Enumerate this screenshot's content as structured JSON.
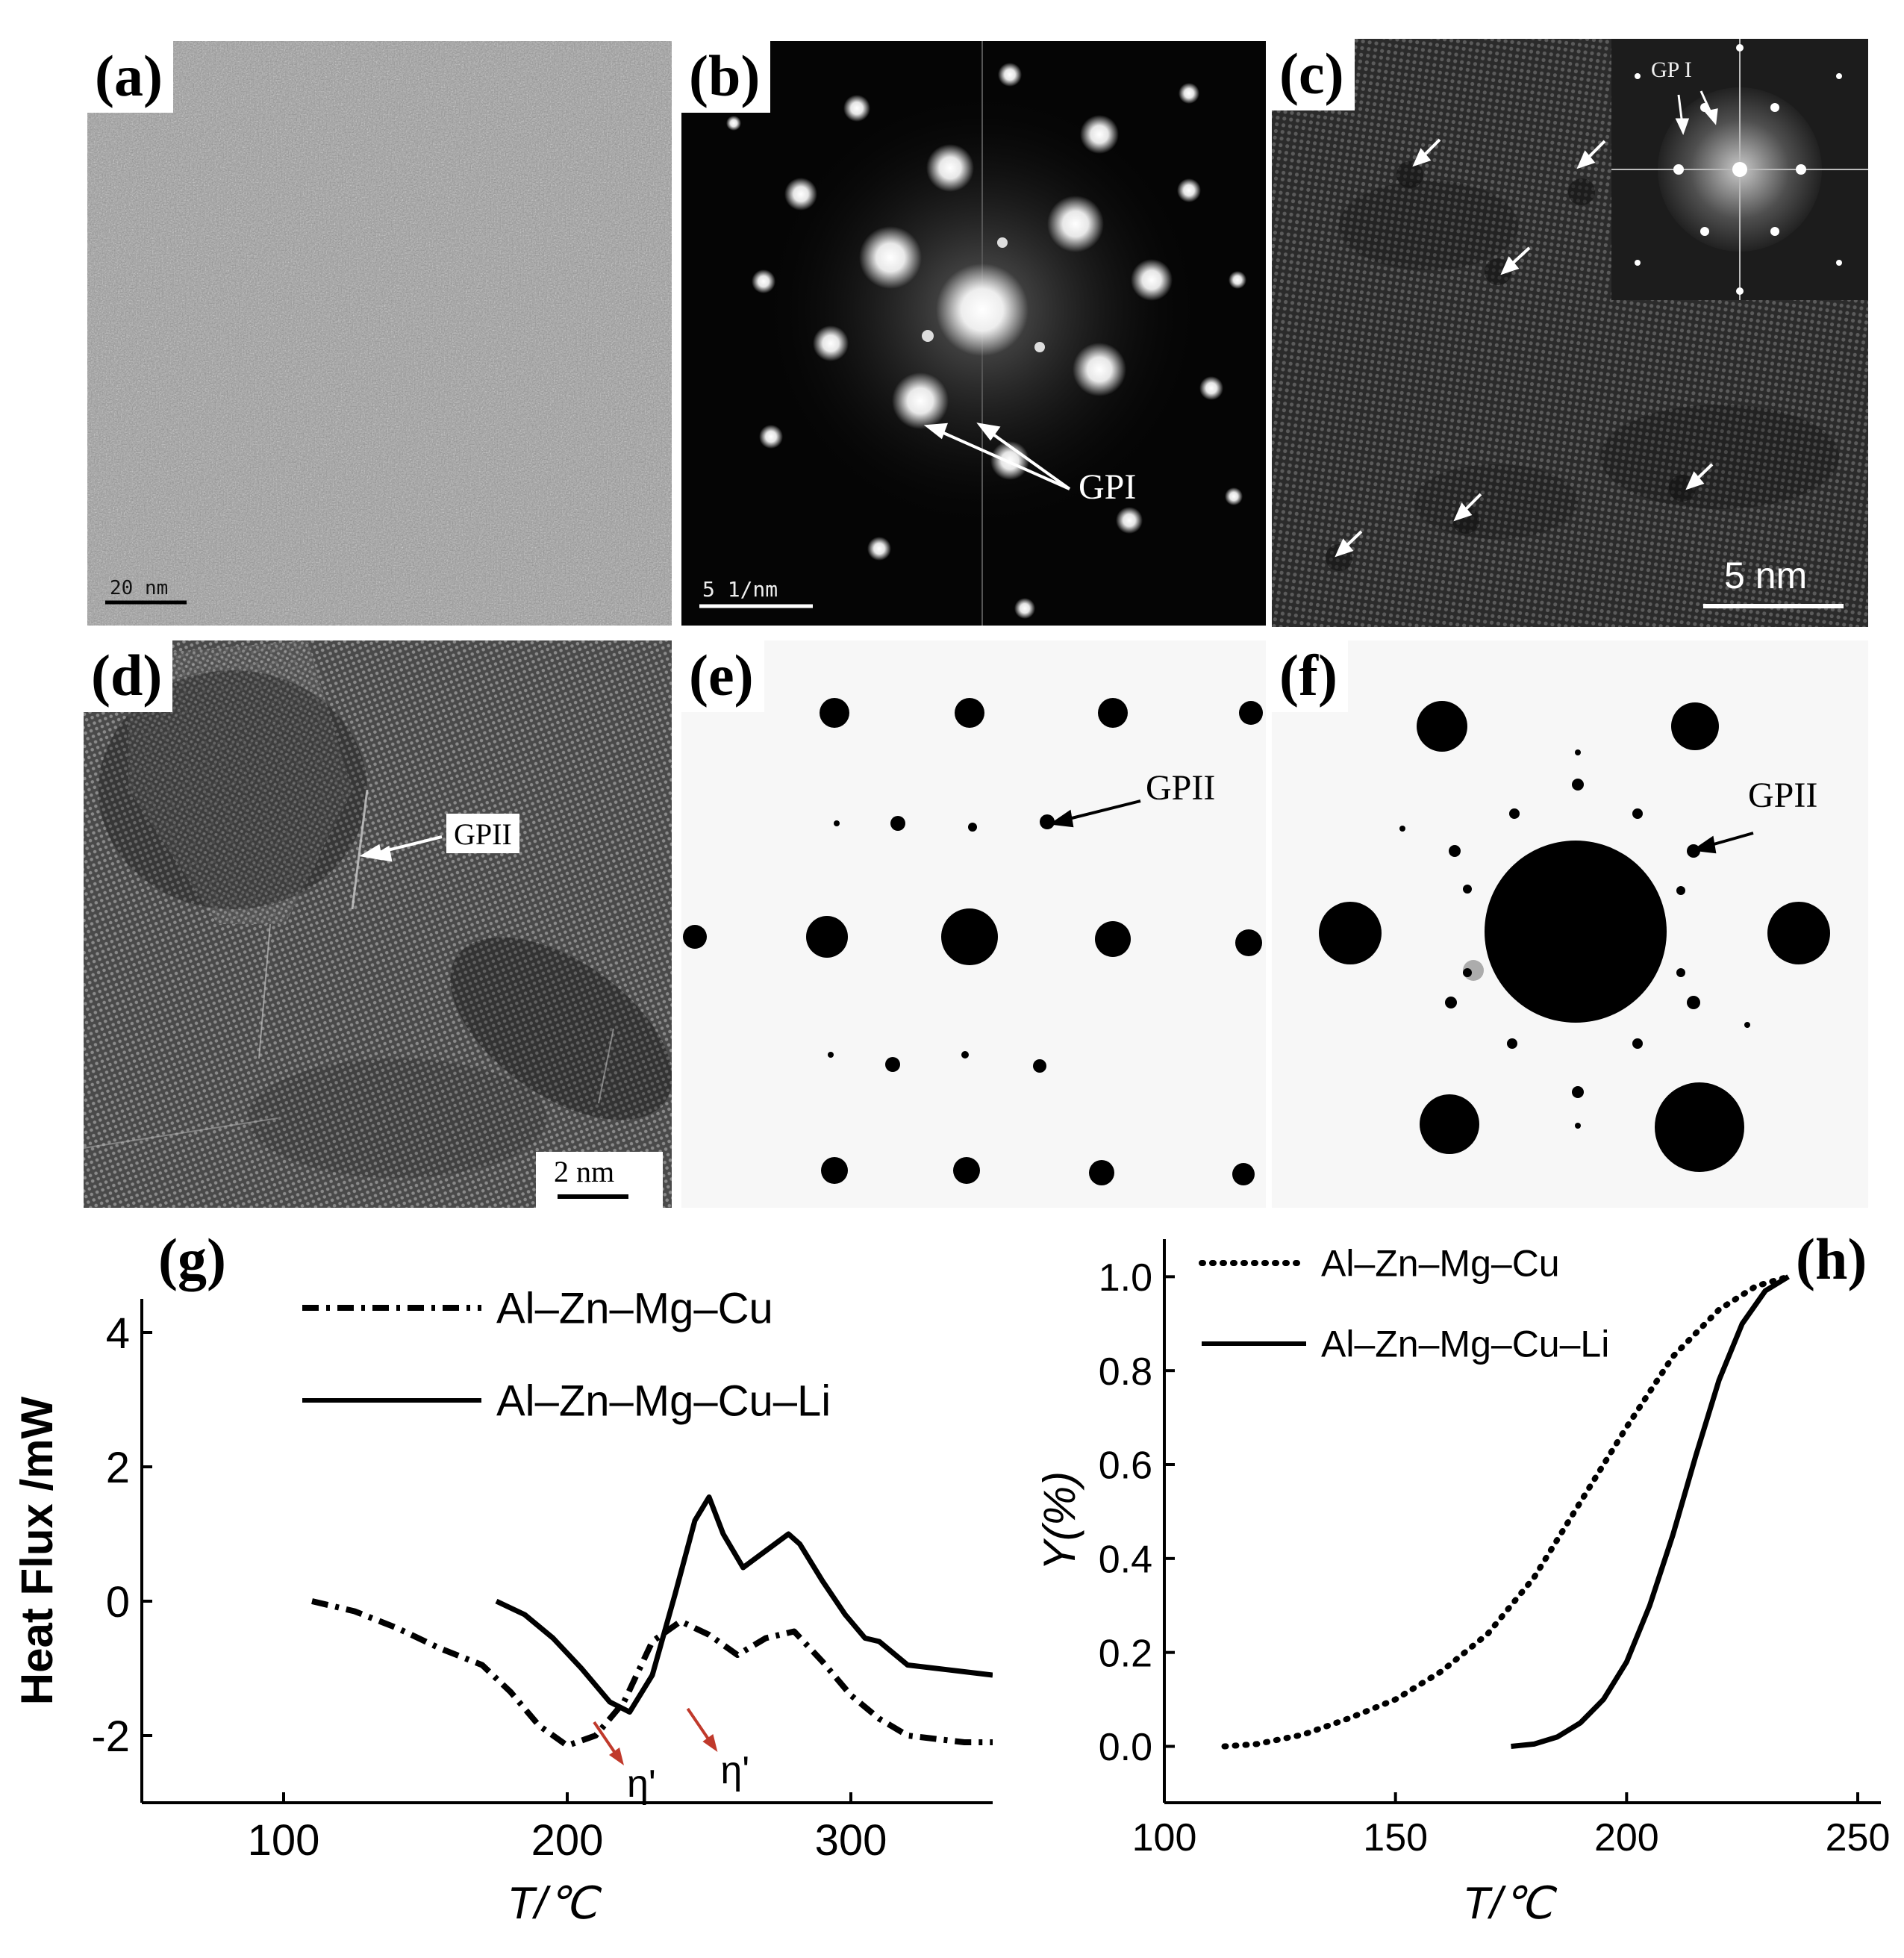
{
  "figure": {
    "panels": {
      "a": {
        "label": "(a)",
        "scale_bar": "20 nm"
      },
      "b": {
        "label": "(b)",
        "scale_bar": "5 1/nm",
        "annotation": "GPI"
      },
      "c": {
        "label": "(c)",
        "scale_bar": "5 nm",
        "inset_annotation": "GP I"
      },
      "d": {
        "label": "(d)",
        "scale_bar": "2 nm",
        "annotation": "GPII"
      },
      "e": {
        "label": "(e)",
        "annotation": "GPII"
      },
      "f": {
        "label": "(f)",
        "annotation": "GPII"
      },
      "g": {
        "label": "(g)"
      },
      "h": {
        "label": "(h)"
      }
    }
  },
  "chart_data": [
    {
      "panel": "g",
      "type": "line",
      "xlabel": "T/℃",
      "ylabel": "Heat Flux /mW",
      "xlim": [
        50,
        350
      ],
      "ylim": [
        -3,
        4.5
      ],
      "x_ticks": [
        100,
        200,
        300
      ],
      "y_ticks": [
        -2,
        0,
        2,
        4
      ],
      "legend_position": "top",
      "series": [
        {
          "name": "Al–Zn–Mg–Cu",
          "style": "dash-dot",
          "x": [
            110,
            125,
            140,
            155,
            170,
            180,
            190,
            200,
            210,
            220,
            230,
            240,
            250,
            260,
            270,
            280,
            290,
            300,
            310,
            320,
            330,
            340,
            350
          ],
          "y": [
            0,
            -0.15,
            -0.4,
            -0.7,
            -0.95,
            -1.35,
            -1.85,
            -2.15,
            -2.0,
            -1.5,
            -0.6,
            -0.3,
            -0.5,
            -0.8,
            -0.55,
            -0.45,
            -0.9,
            -1.4,
            -1.75,
            -2.0,
            -2.05,
            -2.1,
            -2.1
          ]
        },
        {
          "name": "Al–Zn–Mg–Cu–Li",
          "style": "solid",
          "x": [
            175,
            185,
            195,
            205,
            215,
            222,
            230,
            238,
            245,
            250,
            255,
            262,
            270,
            278,
            282,
            290,
            298,
            305,
            310,
            320,
            330,
            340,
            350
          ],
          "y": [
            0,
            -0.2,
            -0.55,
            -1.0,
            -1.5,
            -1.65,
            -1.1,
            0.1,
            1.2,
            1.55,
            1.0,
            0.5,
            0.75,
            1.0,
            0.85,
            0.3,
            -0.2,
            -0.55,
            -0.6,
            -0.95,
            -1.0,
            -1.05,
            -1.1
          ]
        }
      ],
      "annotations": [
        {
          "text": "η'",
          "x": 220,
          "y": -2.8
        },
        {
          "text": "η'",
          "x": 253,
          "y": -2.6
        }
      ]
    },
    {
      "panel": "h",
      "type": "line",
      "xlabel": "T/℃",
      "ylabel": "Y(%)",
      "xlim": [
        100,
        255
      ],
      "ylim": [
        -0.12,
        1.08
      ],
      "x_ticks": [
        100,
        150,
        200,
        250
      ],
      "y_ticks": [
        0.0,
        0.2,
        0.4,
        0.6,
        0.8,
        1.0
      ],
      "legend_position": "top-left",
      "series": [
        {
          "name": "Al–Zn–Mg–Cu",
          "style": "dotted",
          "x": [
            113,
            120,
            130,
            140,
            150,
            160,
            170,
            180,
            190,
            200,
            210,
            220,
            228,
            235
          ],
          "y": [
            0.0,
            0.005,
            0.025,
            0.06,
            0.1,
            0.16,
            0.24,
            0.36,
            0.52,
            0.68,
            0.83,
            0.93,
            0.98,
            1.0
          ]
        },
        {
          "name": "Al–Zn–Mg–Cu–Li",
          "style": "solid",
          "x": [
            175,
            180,
            185,
            190,
            195,
            200,
            205,
            210,
            215,
            220,
            225,
            230,
            235
          ],
          "y": [
            0.0,
            0.005,
            0.02,
            0.05,
            0.1,
            0.18,
            0.3,
            0.45,
            0.62,
            0.78,
            0.9,
            0.97,
            1.0
          ]
        }
      ]
    }
  ]
}
